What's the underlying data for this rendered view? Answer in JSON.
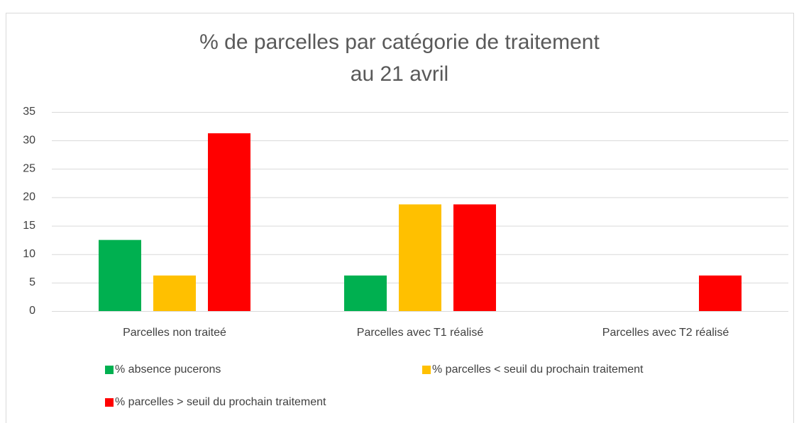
{
  "chart_data": {
    "type": "bar",
    "title": [
      "% de parcelles par catégorie de traitement",
      "au 21 avril"
    ],
    "categories": [
      "Parcelles non traiteé",
      "Parcelles avec T1 réalisé",
      "Parcelles avec T2 réalisé"
    ],
    "series": [
      {
        "name": "% absence pucerons",
        "color": "#00b050",
        "values": [
          12.5,
          6.25,
          0
        ]
      },
      {
        "name": "% parcelles < seuil du prochain traitement",
        "color": "#ffc000",
        "values": [
          6.25,
          18.75,
          0
        ]
      },
      {
        "name": "% parcelles > seuil du prochain traitement",
        "color": "#ff0000",
        "values": [
          31.25,
          18.75,
          6.25
        ]
      }
    ],
    "ylim": [
      0,
      35
    ],
    "yticks": [
      0,
      5,
      10,
      15,
      20,
      25,
      30,
      35
    ],
    "grid": true,
    "legend": "bottom"
  }
}
